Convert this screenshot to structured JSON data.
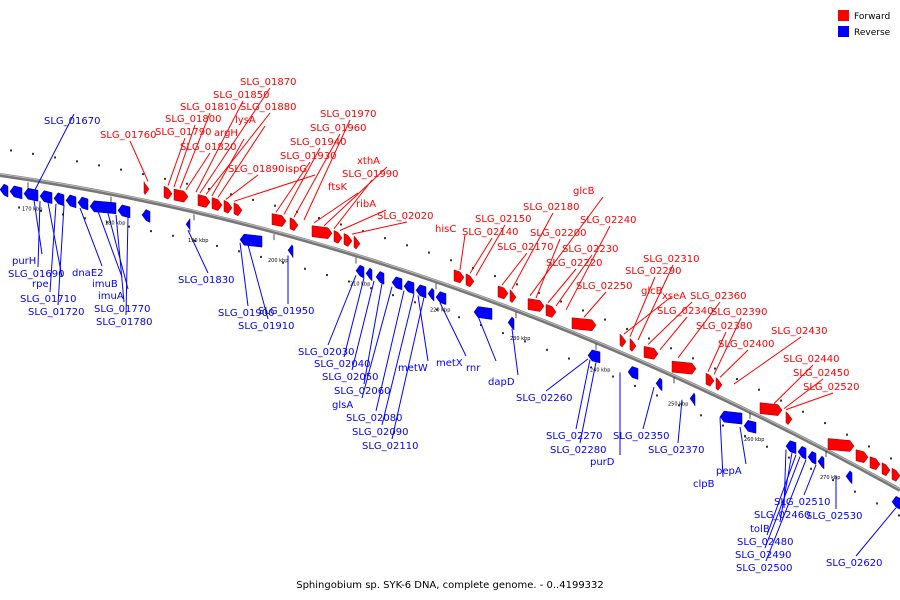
{
  "caption": "Sphingobium sp. SYK-6 DNA, complete genome. - 0..4199332",
  "legend": [
    {
      "label": "Forward",
      "color": "#ff0000"
    },
    {
      "label": "Reverse",
      "color": "#0000ff"
    }
  ],
  "colors": {
    "forward": "#ff0000",
    "reverse": "#0000ff",
    "backbone": "#777777",
    "label_forward": "#ff0000",
    "label_reverse": "#0000ff"
  },
  "ticks": [
    "170 kbp",
    "180 kbp",
    "190 kbp",
    "200 kbp",
    "210 kbp",
    "220 kbp",
    "230 kbp",
    "240 kbp",
    "250 kbp",
    "260 kbp",
    "270 kbp"
  ],
  "forward_labels": [
    "SLG_01760",
    "SLG_01790",
    "SLG_01800",
    "SLG_01810",
    "SLG_01820",
    "SLG_01850",
    "SLG_01870",
    "SLG_01880",
    "argH",
    "lysA",
    "SLG_01890",
    "ispG",
    "SLG_01930",
    "SLG_01940",
    "SLG_01960",
    "SLG_01970",
    "ftsK",
    "xthA",
    "SLG_01990",
    "ribA",
    "SLG_02020",
    "hisC",
    "SLG_02140",
    "SLG_02150",
    "SLG_02170",
    "SLG_02180",
    "glcB",
    "SLG_02200",
    "SLG_02220",
    "SLG_02230",
    "SLG_02240",
    "SLG_02250",
    "glcB",
    "SLG_02290",
    "SLG_02310",
    "xseA",
    "SLG_02340",
    "SLG_02360",
    "SLG_02380",
    "SLG_02390",
    "SLG_02400",
    "SLG_02430",
    "SLG_02440",
    "SLG_02450",
    "SLG_02520"
  ],
  "reverse_labels": [
    "SLG_01670",
    "purH",
    "SLG_01690",
    "rpe",
    "SLG_01710",
    "SLG_01720",
    "dnaE2",
    "imuB",
    "imuA",
    "SLG_01770",
    "SLG_01780",
    "SLG_01830",
    "SLG_01900",
    "SLG_01910",
    "SLG_01950",
    "SLG_02030",
    "SLG_02040",
    "SLG_02050",
    "SLG_02060",
    "glsA",
    "SLG_02080",
    "SLG_02090",
    "SLG_02110",
    "metW",
    "metX",
    "rnr",
    "dapD",
    "SLG_02260",
    "SLG_02270",
    "SLG_02280",
    "purD",
    "SLG_02350",
    "SLG_02370",
    "clpB",
    "pepA",
    "SLG_02460",
    "tolB",
    "SLG_02480",
    "SLG_02490",
    "SLG_02500",
    "SLG_02510",
    "SLG_02530",
    "SLG_02620"
  ]
}
